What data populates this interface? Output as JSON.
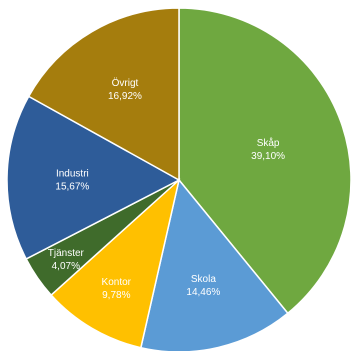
{
  "chart_data": {
    "type": "pie",
    "title": "",
    "slices": [
      {
        "label": "Skåp",
        "value": 39.1,
        "display": "39,10%",
        "color": "#6fa840"
      },
      {
        "label": "Skola",
        "value": 14.46,
        "display": "14,46%",
        "color": "#5b9bd5"
      },
      {
        "label": "Kontor",
        "value": 9.78,
        "display": "9,78%",
        "color": "#ffc000"
      },
      {
        "label": "Tjänster",
        "value": 4.07,
        "display": "4,07%",
        "color": "#3f6b2b"
      },
      {
        "label": "Industri",
        "value": 15.67,
        "display": "15,67%",
        "color": "#2e5c99"
      },
      {
        "label": "Övrigt",
        "value": 16.92,
        "display": "16,92%",
        "color": "#a57d0d"
      }
    ]
  }
}
